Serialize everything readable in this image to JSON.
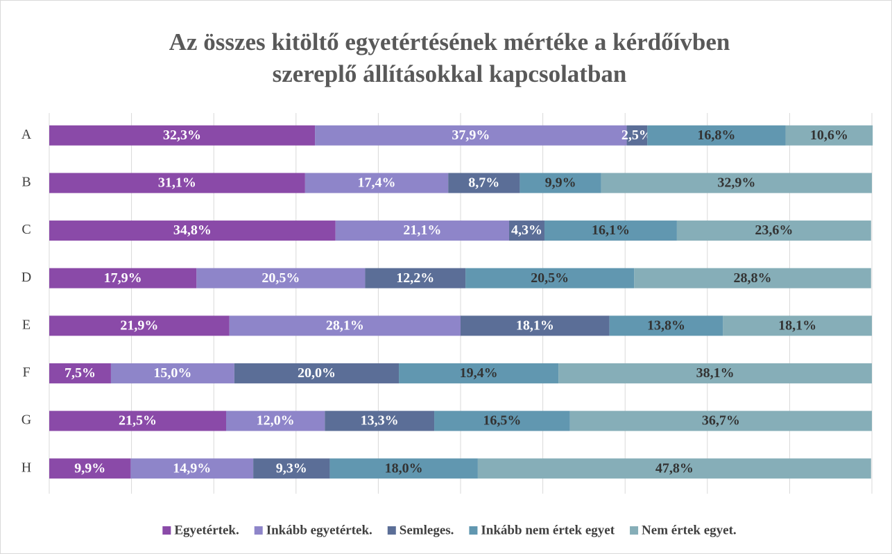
{
  "chart_data": {
    "type": "stacked_bar_horizontal",
    "title": [
      "Az összes kitöltő egyetértésének mértéke a kérdőívben",
      "szereplő állításokkal kapcsolatban"
    ],
    "categories": [
      "A",
      "B",
      "C",
      "D",
      "E",
      "F",
      "G",
      "H"
    ],
    "series": [
      {
        "name": "Egyetértek.",
        "color": "#8a4aa8",
        "label_color": "#ffffff",
        "values": [
          32.3,
          31.1,
          34.8,
          17.9,
          21.9,
          7.5,
          21.5,
          9.9
        ],
        "value_labels": [
          "32,3%",
          "31,1%",
          "34,8%",
          "17,9%",
          "21,9%",
          "7,5%",
          "21,5%",
          "9,9%"
        ]
      },
      {
        "name": "Inkább egyetértek.",
        "color": "#8e85c9",
        "label_color": "#ffffff",
        "values": [
          37.9,
          17.4,
          21.1,
          20.5,
          28.1,
          15.0,
          12.0,
          14.9
        ],
        "value_labels": [
          "37,9%",
          "17,4%",
          "21,1%",
          "20,5%",
          "28,1%",
          "15,0%",
          "12,0%",
          "14,9%"
        ]
      },
      {
        "name": "Semleges.",
        "color": "#5b6e97",
        "label_color": "#ffffff",
        "values": [
          2.5,
          8.7,
          4.3,
          12.2,
          18.1,
          20.0,
          13.3,
          9.3
        ],
        "value_labels": [
          "2,5%",
          "8,7%",
          "4,3%",
          "12,2%",
          "18,1%",
          "20,0%",
          "13,3%",
          "9,3%"
        ]
      },
      {
        "name": "Inkább nem értek egyet",
        "color": "#6197b0",
        "label_color": "#333333",
        "values": [
          16.8,
          9.9,
          16.1,
          20.5,
          13.8,
          19.4,
          16.5,
          18.0
        ],
        "value_labels": [
          "16,8%",
          "9,9%",
          "16,1%",
          "20,5%",
          "13,8%",
          "19,4%",
          "16,5%",
          "18,0%"
        ]
      },
      {
        "name": "Nem értek egyet.",
        "color": "#86aeb8",
        "label_color": "#333333",
        "values": [
          10.6,
          32.9,
          23.6,
          28.8,
          18.1,
          38.1,
          36.7,
          47.8
        ],
        "value_labels": [
          "10,6%",
          "32,9%",
          "23,6%",
          "28,8%",
          "18,1%",
          "38,1%",
          "36,7%",
          "47,8%"
        ]
      }
    ],
    "xlim": [
      0,
      100
    ],
    "xticks": [
      0,
      10,
      20,
      30,
      40,
      50,
      60,
      70,
      80,
      90,
      100
    ],
    "grid": true,
    "legend": "bottom"
  }
}
